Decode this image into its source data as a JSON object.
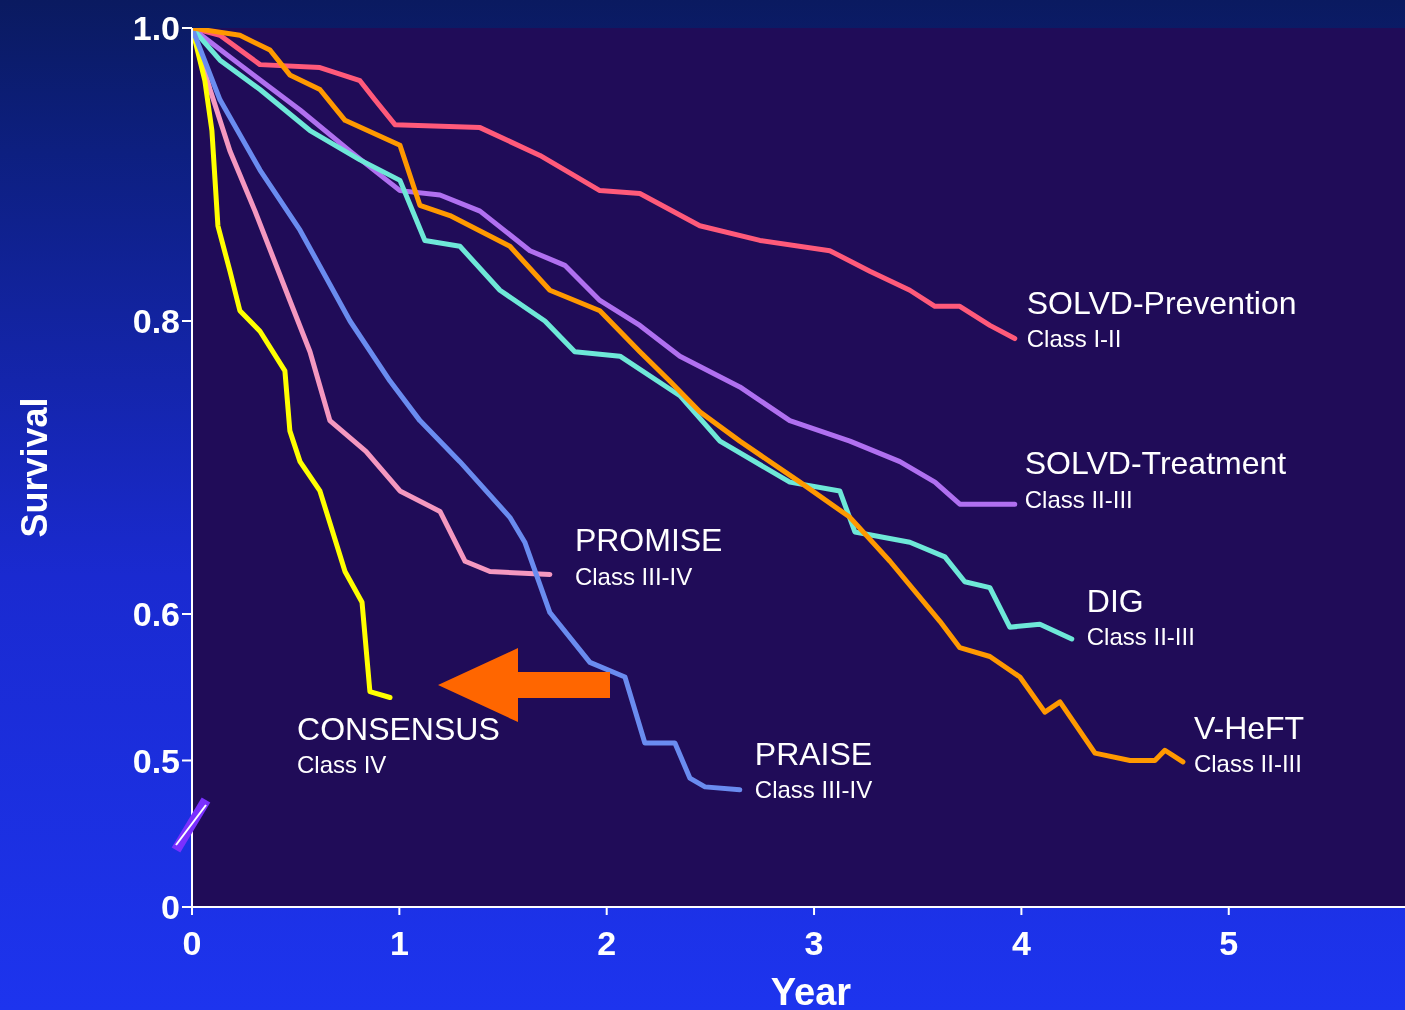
{
  "chart_data": {
    "type": "line",
    "xlabel": "Year",
    "ylabel": "Survival",
    "xlim": [
      0,
      5.85
    ],
    "xticks": [
      0,
      1,
      2,
      3,
      4,
      5
    ],
    "ylim": [
      0.4,
      1.0
    ],
    "yticks": [
      {
        "value": 0.4,
        "label": "0"
      },
      0.5,
      0.6,
      0.8,
      {
        "value": 1.0,
        "label": "1.0"
      }
    ],
    "grid": false,
    "legend": false,
    "marker": "none",
    "line_style": "solid",
    "series": [
      {
        "name": "SOLVD-Prevention",
        "color": "#ff5a7a",
        "x": [
          0,
          0.135,
          0.328,
          0.617,
          0.81,
          0.882,
          0.979,
          1.389,
          1.678,
          1.967,
          2.16,
          2.449,
          2.739,
          3.076,
          3.269,
          3.462,
          3.583,
          3.703,
          3.848,
          3.968
        ],
        "values": [
          1,
          0.995,
          0.975,
          0.973,
          0.964,
          0.951,
          0.934,
          0.932,
          0.913,
          0.889,
          0.887,
          0.865,
          0.855,
          0.848,
          0.834,
          0.821,
          0.81,
          0.81,
          0.797,
          0.788
        ]
      },
      {
        "name": "SOLVD-Treatment",
        "color": "#b070f0",
        "x": [
          0,
          0.231,
          0.521,
          0.762,
          1.003,
          1.196,
          1.389,
          1.63,
          1.798,
          1.967,
          2.16,
          2.353,
          2.642,
          2.883,
          3.173,
          3.414,
          3.583,
          3.703,
          3.968
        ],
        "values": [
          1,
          0.975,
          0.944,
          0.916,
          0.889,
          0.886,
          0.875,
          0.848,
          0.838,
          0.814,
          0.797,
          0.776,
          0.755,
          0.732,
          0.718,
          0.704,
          0.69,
          0.675,
          0.675
        ]
      },
      {
        "name": "PROMISE",
        "color": "#f598c0",
        "x": [
          0,
          0.087,
          0.183,
          0.304,
          0.472,
          0.569,
          0.665,
          0.839,
          1.003,
          1.196,
          1.317,
          1.437,
          1.726
        ],
        "values": [
          1,
          0.958,
          0.916,
          0.875,
          0.814,
          0.779,
          0.732,
          0.711,
          0.684,
          0.67,
          0.636,
          0.629,
          0.627
        ]
      },
      {
        "name": "DIG",
        "color": "#6ee8d8",
        "x": [
          0,
          0.135,
          0.328,
          0.569,
          0.81,
          1.003,
          1.123,
          1.292,
          1.485,
          1.702,
          1.846,
          2.064,
          2.353,
          2.546,
          2.883,
          3.124,
          3.197,
          3.462,
          3.631,
          3.727,
          3.848,
          3.944,
          4.089,
          4.243
        ],
        "values": [
          1,
          0.978,
          0.958,
          0.93,
          0.91,
          0.896,
          0.855,
          0.851,
          0.821,
          0.8,
          0.779,
          0.776,
          0.749,
          0.718,
          0.69,
          0.684,
          0.656,
          0.649,
          0.639,
          0.622,
          0.618,
          0.591,
          0.593,
          0.583
        ]
      },
      {
        "name": "CONSENSUS",
        "color": "#ffff00",
        "x": [
          0,
          0.062,
          0.096,
          0.125,
          0.183,
          0.231,
          0.328,
          0.448,
          0.472,
          0.521,
          0.617,
          0.738,
          0.82,
          0.858,
          0.955
        ],
        "values": [
          1,
          0.964,
          0.93,
          0.865,
          0.834,
          0.807,
          0.793,
          0.766,
          0.725,
          0.704,
          0.684,
          0.629,
          0.608,
          0.547,
          0.543
        ]
      },
      {
        "name": "PRAISE",
        "color": "#6a8cf0",
        "x": [
          0,
          0.135,
          0.328,
          0.521,
          0.762,
          0.955,
          1.099,
          1.292,
          1.533,
          1.605,
          1.726,
          1.919,
          2.088,
          2.184,
          2.329,
          2.401,
          2.474,
          2.642
        ],
        "values": [
          1,
          0.951,
          0.903,
          0.862,
          0.8,
          0.759,
          0.732,
          0.704,
          0.666,
          0.649,
          0.601,
          0.567,
          0.557,
          0.512,
          0.512,
          0.488,
          0.482,
          0.48
        ]
      },
      {
        "name": "V-HeFT",
        "color": "#ff9900",
        "x": [
          0,
          0.231,
          0.376,
          0.472,
          0.617,
          0.738,
          1.003,
          1.099,
          1.244,
          1.533,
          1.726,
          1.967,
          2.16,
          2.304,
          2.449,
          2.642,
          2.932,
          3.173,
          3.366,
          3.607,
          3.703,
          3.848,
          3.993,
          4.113,
          4.186,
          4.355,
          4.524,
          4.644,
          4.692,
          4.779
        ],
        "values": [
          1,
          0.995,
          0.985,
          0.968,
          0.958,
          0.937,
          0.92,
          0.879,
          0.872,
          0.851,
          0.821,
          0.807,
          0.779,
          0.759,
          0.738,
          0.718,
          0.69,
          0.666,
          0.636,
          0.595,
          0.577,
          0.571,
          0.557,
          0.533,
          0.54,
          0.505,
          0.5,
          0.5,
          0.507,
          0.499
        ]
      }
    ],
    "annotations": [
      "Class I-II",
      "Class II-III",
      "Class III-IV",
      "Class II-III",
      "Class IV",
      "Class III-IV",
      "Class II-III"
    ]
  }
}
